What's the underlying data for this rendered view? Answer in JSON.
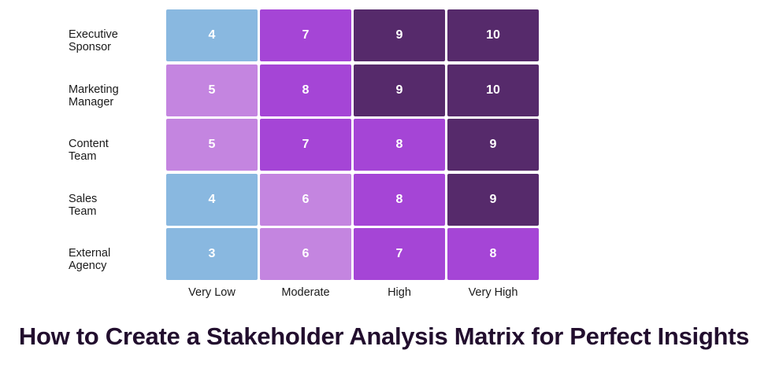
{
  "title": "How to Create a Stakeholder Analysis Matrix for Perfect Insights",
  "chart_data": {
    "type": "heatmap",
    "rows": [
      "Executive Sponsor",
      "Marketing Manager",
      "Content Team",
      "Sales Team",
      "External Agency"
    ],
    "columns": [
      "Very Low",
      "Moderate",
      "High",
      "Very High"
    ],
    "values": [
      [
        4,
        7,
        9,
        10
      ],
      [
        5,
        8,
        9,
        10
      ],
      [
        5,
        7,
        8,
        9
      ],
      [
        4,
        6,
        8,
        9
      ],
      [
        3,
        6,
        7,
        8
      ]
    ],
    "color_scale": {
      "3": "#89b8e0",
      "4": "#89b8e0",
      "5": "#c485e0",
      "6": "#c485e0",
      "7": "#a545d6",
      "8": "#a545d6",
      "9": "#562a6b",
      "10": "#562a6b"
    },
    "legend": "none",
    "grid": false
  }
}
